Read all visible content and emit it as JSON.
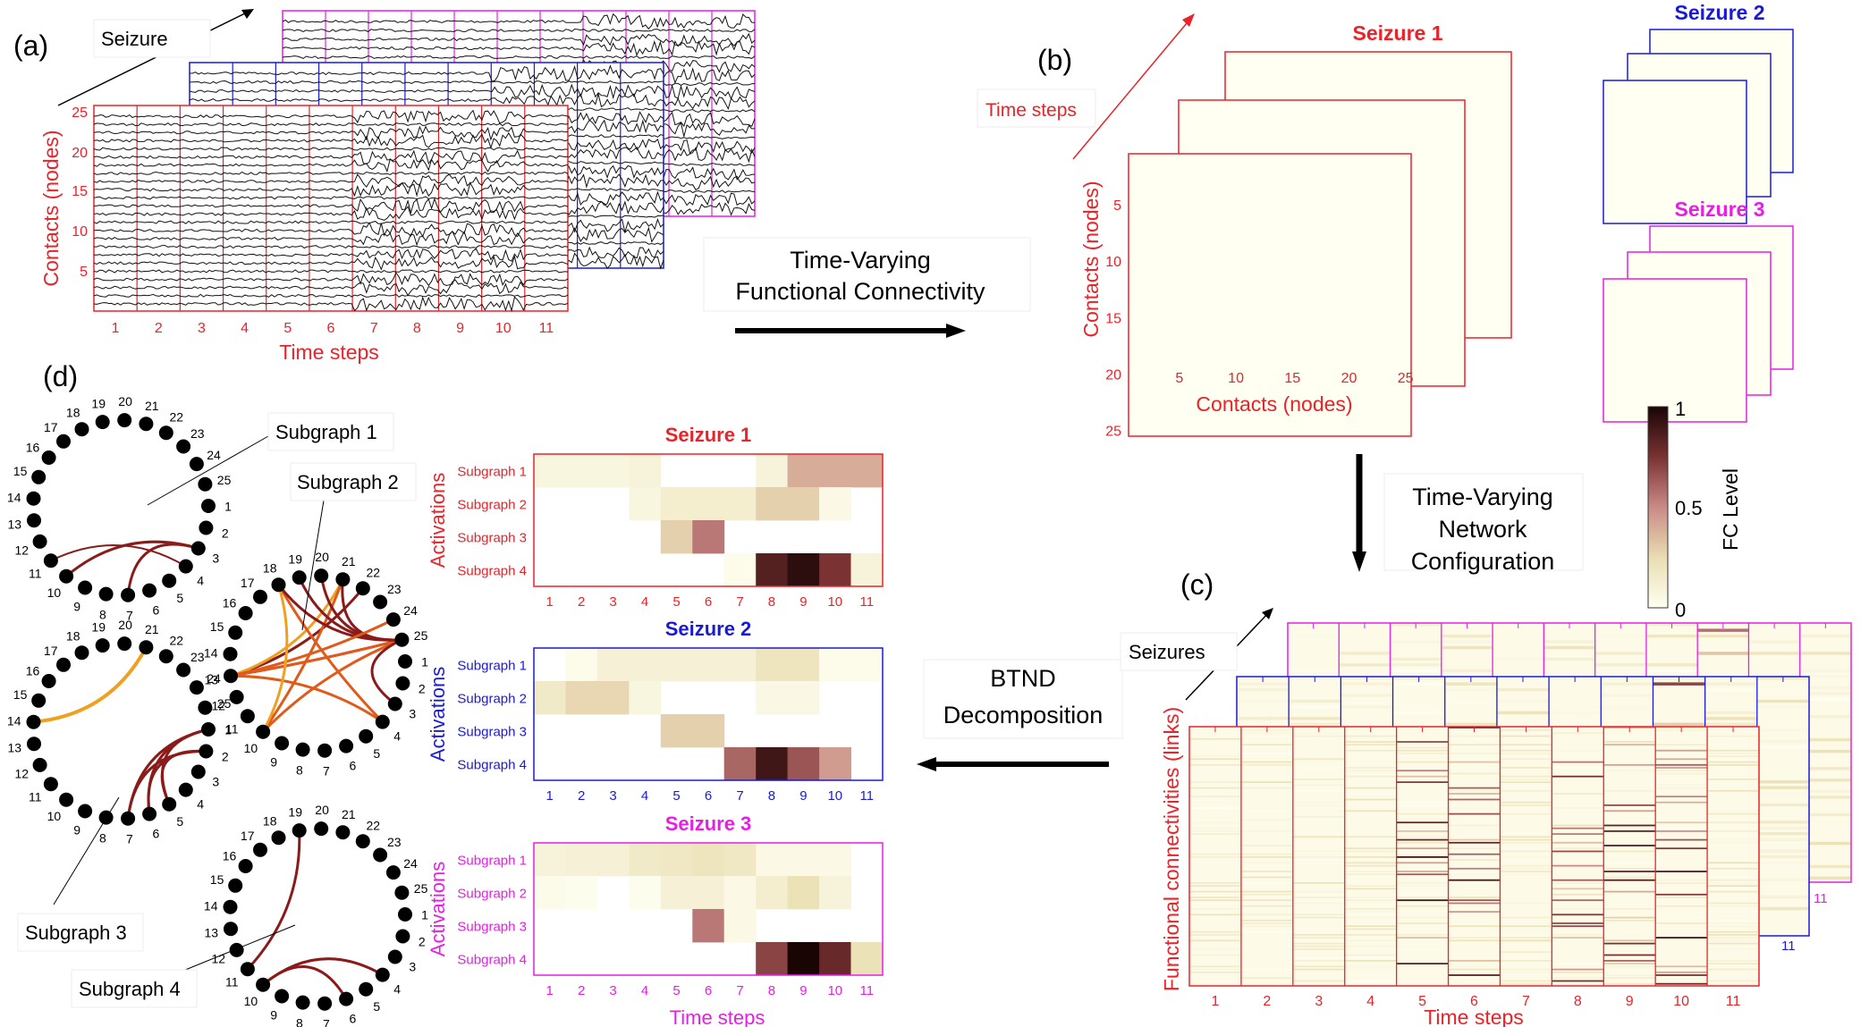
{
  "panel_labels": {
    "a": "(a)",
    "b": "(b)",
    "c": "(c)",
    "d": "(d)"
  },
  "colors": {
    "seizure1": "#e8232a",
    "seizure2": "#1a1ad6",
    "seizure3": "#e61ee6",
    "arc_dark": "#8b1a1a",
    "arc_mid": "#e05a1a",
    "arc_light": "#f0a020",
    "heat_low": "#fffff2",
    "heat_mid": "#c98a86",
    "heat_high": "#2a0a0a"
  },
  "panel_a": {
    "seizure_label": "Seizure",
    "ylabel": "Contacts (nodes)",
    "xlabel": "Time steps",
    "yticks": [
      "25",
      "20",
      "15",
      "10",
      "5"
    ],
    "xticks": [
      "1",
      "2",
      "3",
      "4",
      "5",
      "6",
      "7",
      "8",
      "9",
      "10",
      "11"
    ]
  },
  "panel_b": {
    "time_steps_label": "Time steps",
    "seizure1_title": "Seizure 1",
    "seizure2_title": "Seizure 2",
    "seizure3_title": "Seizure 3",
    "ylabel": "Contacts (nodes)",
    "xlabel": "Contacts (nodes)",
    "yticks": [
      "5",
      "10",
      "15",
      "20",
      "25"
    ],
    "xticks": [
      "5",
      "10",
      "15",
      "20",
      "25"
    ],
    "colorbar": {
      "label": "FC Level",
      "ticks": [
        "1",
        "0.5",
        "0"
      ]
    }
  },
  "arrows": {
    "tvfc_line1": "Time-Varying",
    "tvfc_line2": "Functional Connectivity",
    "tvnc_line1": "Time-Varying",
    "tvnc_line2": "Network",
    "tvnc_line3": "Configuration",
    "btnd_line1": "BTND",
    "btnd_line2": "Decomposition"
  },
  "panel_c": {
    "seizures_label": "Seizures",
    "ylabel": "Functional connectivities (links)",
    "xlabel": "Time steps",
    "xticks": [
      "1",
      "2",
      "3",
      "4",
      "5",
      "6",
      "7",
      "8",
      "9",
      "10",
      "11"
    ],
    "back_tick": "11"
  },
  "panel_d": {
    "subgraph1": "Subgraph 1",
    "subgraph2": "Subgraph 2",
    "subgraph3": "Subgraph 3",
    "subgraph4": "Subgraph 4",
    "node_labels": [
      "1",
      "2",
      "3",
      "4",
      "5",
      "6",
      "7",
      "8",
      "9",
      "10",
      "11",
      "12",
      "13",
      "14",
      "15",
      "16",
      "17",
      "18",
      "19",
      "20",
      "21",
      "22",
      "23",
      "24",
      "25"
    ],
    "activation_panels": [
      {
        "title": "Seizure 1",
        "ylabel": "Activations",
        "rows": [
          "Subgraph 1",
          "Subgraph 2",
          "Subgraph 3",
          "Subgraph 4"
        ],
        "values": [
          [
            0.08,
            0.08,
            0.08,
            0.1,
            0.0,
            0.0,
            0.0,
            0.1,
            0.4,
            0.4,
            0.4
          ],
          [
            0.0,
            0.0,
            0.0,
            0.08,
            0.15,
            0.15,
            0.15,
            0.3,
            0.3,
            0.05,
            0.0
          ],
          [
            0.0,
            0.0,
            0.0,
            0.0,
            0.3,
            0.55,
            0.0,
            0.0,
            0.0,
            0.0,
            0.0
          ],
          [
            0.0,
            0.0,
            0.0,
            0.0,
            0.0,
            0.0,
            0.03,
            0.85,
            0.95,
            0.75,
            0.1
          ]
        ]
      },
      {
        "title": "Seizure 2",
        "ylabel": "Activations",
        "rows": [
          "Subgraph 1",
          "Subgraph 2",
          "Subgraph 3",
          "Subgraph 4"
        ],
        "values": [
          [
            0.0,
            0.03,
            0.12,
            0.12,
            0.12,
            0.12,
            0.12,
            0.22,
            0.22,
            0.03,
            0.03
          ],
          [
            0.18,
            0.28,
            0.28,
            0.08,
            0.0,
            0.0,
            0.0,
            0.06,
            0.06,
            0.0,
            0.0
          ],
          [
            0.0,
            0.0,
            0.0,
            0.0,
            0.3,
            0.3,
            0.0,
            0.0,
            0.0,
            0.0,
            0.0
          ],
          [
            0.0,
            0.0,
            0.0,
            0.0,
            0.0,
            0.0,
            0.6,
            0.9,
            0.65,
            0.45,
            0.0
          ]
        ]
      },
      {
        "title": "Seizure 3",
        "ylabel": "Activations",
        "rows": [
          "Subgraph 1",
          "Subgraph 2",
          "Subgraph 3",
          "Subgraph 4"
        ],
        "values": [
          [
            0.1,
            0.12,
            0.12,
            0.18,
            0.2,
            0.22,
            0.2,
            0.05,
            0.05,
            0.05,
            0.0
          ],
          [
            0.04,
            0.02,
            0.0,
            0.02,
            0.12,
            0.12,
            0.05,
            0.15,
            0.25,
            0.1,
            0.0
          ],
          [
            0.0,
            0.0,
            0.0,
            0.0,
            0.0,
            0.55,
            0.05,
            0.0,
            0.0,
            0.0,
            0.0
          ],
          [
            0.0,
            0.0,
            0.0,
            0.0,
            0.0,
            0.0,
            0.0,
            0.7,
            1.0,
            0.8,
            0.25
          ]
        ]
      }
    ],
    "xlabel": "Time steps",
    "xticks": [
      "1",
      "2",
      "3",
      "4",
      "5",
      "6",
      "7",
      "8",
      "9",
      "10",
      "11"
    ]
  }
}
